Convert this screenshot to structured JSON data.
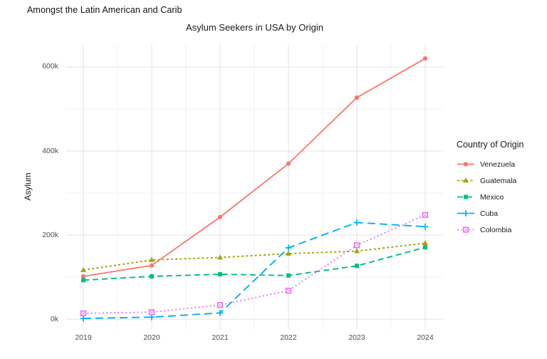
{
  "page": {
    "header": "Amongst the Latin American and Carib"
  },
  "chart_data": {
    "type": "line",
    "title": "Asylum Seekers in USA by Origin",
    "xlabel": "",
    "ylabel": "Asylum",
    "legend_title": "Country of Origin",
    "legend_position": "right",
    "grid": true,
    "x": [
      2019,
      2020,
      2021,
      2022,
      2023,
      2024
    ],
    "x_tick_labels": [
      "2019",
      "2020",
      "2021",
      "2022",
      "2023",
      "2024"
    ],
    "y_tick_labels": [
      "0k",
      "200k",
      "400k",
      "600k"
    ],
    "y_ticks_thousands": [
      0,
      200,
      400,
      600
    ],
    "y_minor_ticks_thousands": [
      100,
      300,
      500
    ],
    "ylim_thousands": [
      -25,
      654
    ],
    "colors": {
      "venezuela": "#F8766D",
      "guatemala": "#A3A500",
      "mexico": "#00BF7D",
      "cuba": "#00B0F6",
      "colombia": "#E76BF3",
      "grid_major": "#e3e3e3",
      "grid_minor": "#f1f1f1",
      "tick_text": "#4d4d4d"
    },
    "series": [
      {
        "name": "Venezuela",
        "color": "#F8766D",
        "linetype": "solid",
        "marker": "circle",
        "values_thousands": [
          102,
          128,
          243,
          370,
          527,
          620
        ]
      },
      {
        "name": "Guatemala",
        "color": "#A3A500",
        "linetype": "dotted",
        "marker": "triangle",
        "values_thousands": [
          117,
          141,
          147,
          156,
          162,
          181
        ]
      },
      {
        "name": "Mexico",
        "color": "#00BF7D",
        "linetype": "dashed",
        "marker": "square",
        "values_thousands": [
          93,
          102,
          107,
          104,
          127,
          171
        ]
      },
      {
        "name": "Cuba",
        "color": "#00B0F6",
        "linetype": "longdash",
        "marker": "plus",
        "values_thousands": [
          2,
          5,
          15,
          170,
          230,
          220
        ]
      },
      {
        "name": "Colombia",
        "color": "#E76BF3",
        "linetype": "fine-dotted",
        "marker": "square-x",
        "values_thousands": [
          14,
          17,
          34,
          68,
          176,
          248
        ]
      }
    ]
  }
}
